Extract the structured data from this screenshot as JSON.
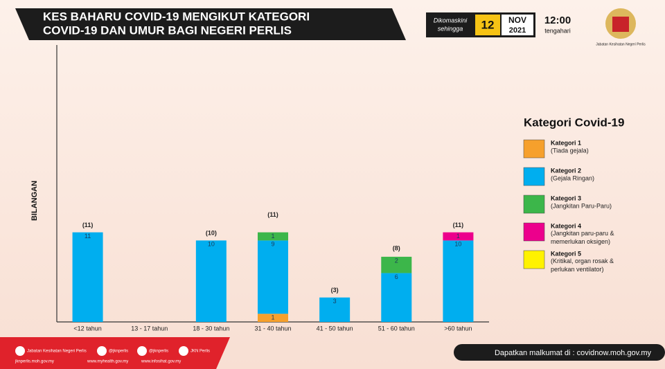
{
  "header": {
    "title_lines": [
      "KES BAHARU COVID-19 MENGIKUT KATEGORI",
      "COVID-19 DAN UMUR BAGI NEGERI PERLIS"
    ],
    "updated_label": [
      "Dikomaskini",
      "sehingga"
    ],
    "day": "12",
    "month": "NOV",
    "year": "2021",
    "time": "12:00",
    "time_label": "tengahari",
    "logo_caption": "Jabatan Kesihatan Negeri Perlis"
  },
  "chart_data": {
    "type": "stacked_bar",
    "ylabel": "BILANGAN",
    "legend_title": "Kategori Covid-19",
    "legend_position": "right",
    "categories": [
      "<12 tahun",
      "13 - 17 tahun",
      "18 - 30 tahun",
      "31 - 40 tahun",
      "41 - 50 tahun",
      "51 - 60 tahun",
      ">60 tahun"
    ],
    "series": [
      {
        "name": "Kategori 1",
        "description": "(Tiada gejala)",
        "color": "#f6a02c",
        "values": [
          null,
          null,
          null,
          1,
          null,
          null,
          null
        ]
      },
      {
        "name": "Kategori 2",
        "description": "(Gejala Ringan)",
        "color": "#00aeef",
        "values": [
          11,
          null,
          10,
          9,
          3,
          6,
          10
        ]
      },
      {
        "name": "Kategori 3",
        "description": "(Jangkitan Paru-Paru)",
        "color": "#3cb64a",
        "values": [
          null,
          null,
          null,
          1,
          null,
          2,
          null
        ]
      },
      {
        "name": "Kategori 4",
        "description": "(Jangkitan paru-paru & memerlukan oksigen)",
        "color": "#ec008c",
        "values": [
          null,
          null,
          null,
          null,
          null,
          null,
          1
        ]
      },
      {
        "name": "Kategori 5",
        "description": "(Kritikal, organ rosak & perlukan ventilator)",
        "color": "#fff200",
        "values": [
          null,
          null,
          null,
          null,
          null,
          null,
          null
        ]
      }
    ],
    "totals": [
      11,
      null,
      10,
      11,
      3,
      8,
      11
    ],
    "total_labels": [
      "(11)",
      null,
      "(10)",
      "(11)",
      "(3)",
      "(8)",
      "(11)"
    ],
    "ylim": [
      0,
      34
    ]
  },
  "footer": {
    "social": [
      "Jabatan Kesihatan Negeri Perlis",
      "@jknperlis",
      "@jknperlis",
      "JKN Perlis"
    ],
    "sites": [
      "jknperlis.moh.gov.my",
      "www.myhealth.gov.my",
      "www.infosihat.gov.my"
    ],
    "info": "Dapatkan malkumat di : covidnow.moh.gov.my"
  }
}
